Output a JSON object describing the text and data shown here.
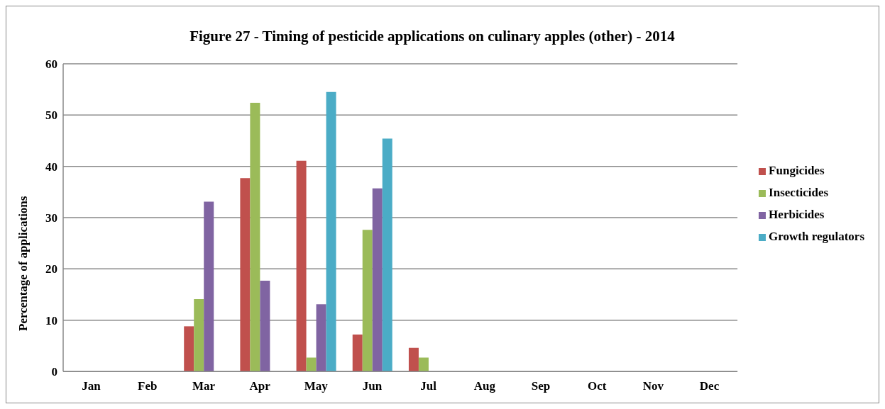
{
  "chart_data": {
    "type": "bar",
    "title": "Figure 27 - Timing of pesticide applications on culinary apples (other) - 2014",
    "ylabel": "Percentage of applications",
    "categories": [
      "Jan",
      "Feb",
      "Mar",
      "Apr",
      "May",
      "Jun",
      "Jul",
      "Aug",
      "Sep",
      "Oct",
      "Nov",
      "Dec"
    ],
    "series": [
      {
        "name": "Fungicides",
        "color": "#c0504d",
        "values": [
          0,
          0,
          8.8,
          37.7,
          41.1,
          7.2,
          4.6,
          0,
          0,
          0,
          0,
          0
        ]
      },
      {
        "name": "Insecticides",
        "color": "#9bbb59",
        "values": [
          0,
          0,
          14.1,
          52.4,
          2.7,
          27.6,
          2.7,
          0,
          0,
          0,
          0,
          0
        ]
      },
      {
        "name": "Herbicides",
        "color": "#8064a2",
        "values": [
          0,
          0,
          33.1,
          17.7,
          13.1,
          35.7,
          0,
          0,
          0,
          0,
          0,
          0
        ]
      },
      {
        "name": "Growth regulators",
        "color": "#4bacc6",
        "values": [
          0,
          0,
          0,
          0,
          54.5,
          45.4,
          0,
          0,
          0,
          0,
          0,
          0
        ]
      }
    ],
    "ylim": [
      0,
      60
    ],
    "yticks": [
      0,
      10,
      20,
      30,
      40,
      50,
      60
    ],
    "grid": "y",
    "legend": "right"
  }
}
